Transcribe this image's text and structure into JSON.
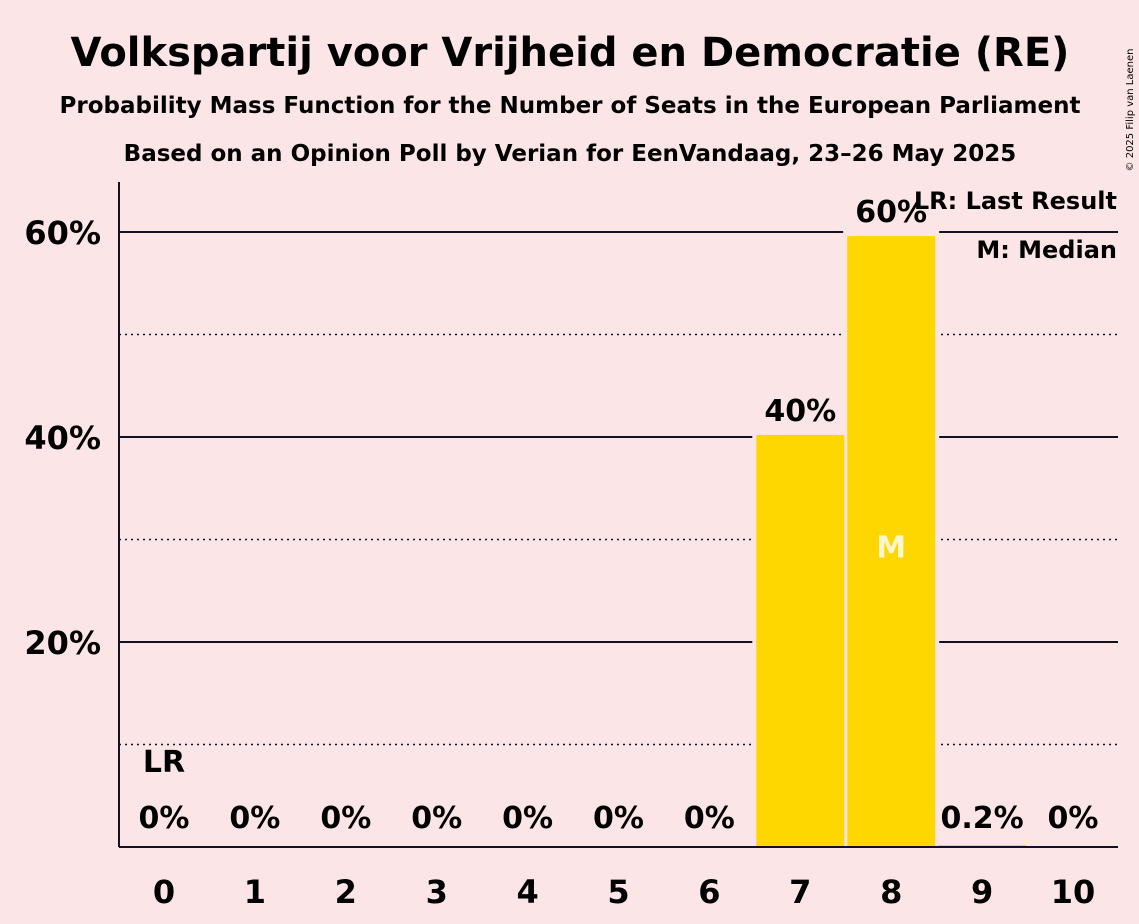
{
  "chart_data": {
    "type": "bar",
    "title": "Volkspartij voor Vrijheid en Democratie (RE)",
    "subtitle": "Probability Mass Function for the Number of Seats in the European Parliament",
    "subtitle2": "Based on an Opinion Poll by Verian for EenVandaag, 23–26 May 2025",
    "categories": [
      "0",
      "1",
      "2",
      "3",
      "4",
      "5",
      "6",
      "7",
      "8",
      "9",
      "10"
    ],
    "values": [
      0,
      0,
      0,
      0,
      0,
      0,
      0,
      40.2,
      59.6,
      0.2,
      0
    ],
    "value_labels": [
      "0%",
      "0%",
      "0%",
      "0%",
      "0%",
      "0%",
      "0%",
      "40%",
      "60%",
      "0.2%",
      "0%"
    ],
    "ylim": [
      0,
      65
    ],
    "yticks": [
      20,
      40,
      60
    ],
    "ytick_labels": [
      "20%",
      "40%",
      "60%"
    ],
    "minor_gridlines": [
      10,
      30,
      50
    ],
    "last_result_seat": 0,
    "median_seat": 8,
    "last_result_marker": "LR",
    "median_marker": "M",
    "legend": {
      "placement": "top-right",
      "last_result": "LR: Last Result",
      "median": "M: Median"
    },
    "copyright": "© 2025 Filip van Laenen",
    "bar_color": "#FFD700",
    "background_color": "#FCE5E7"
  }
}
